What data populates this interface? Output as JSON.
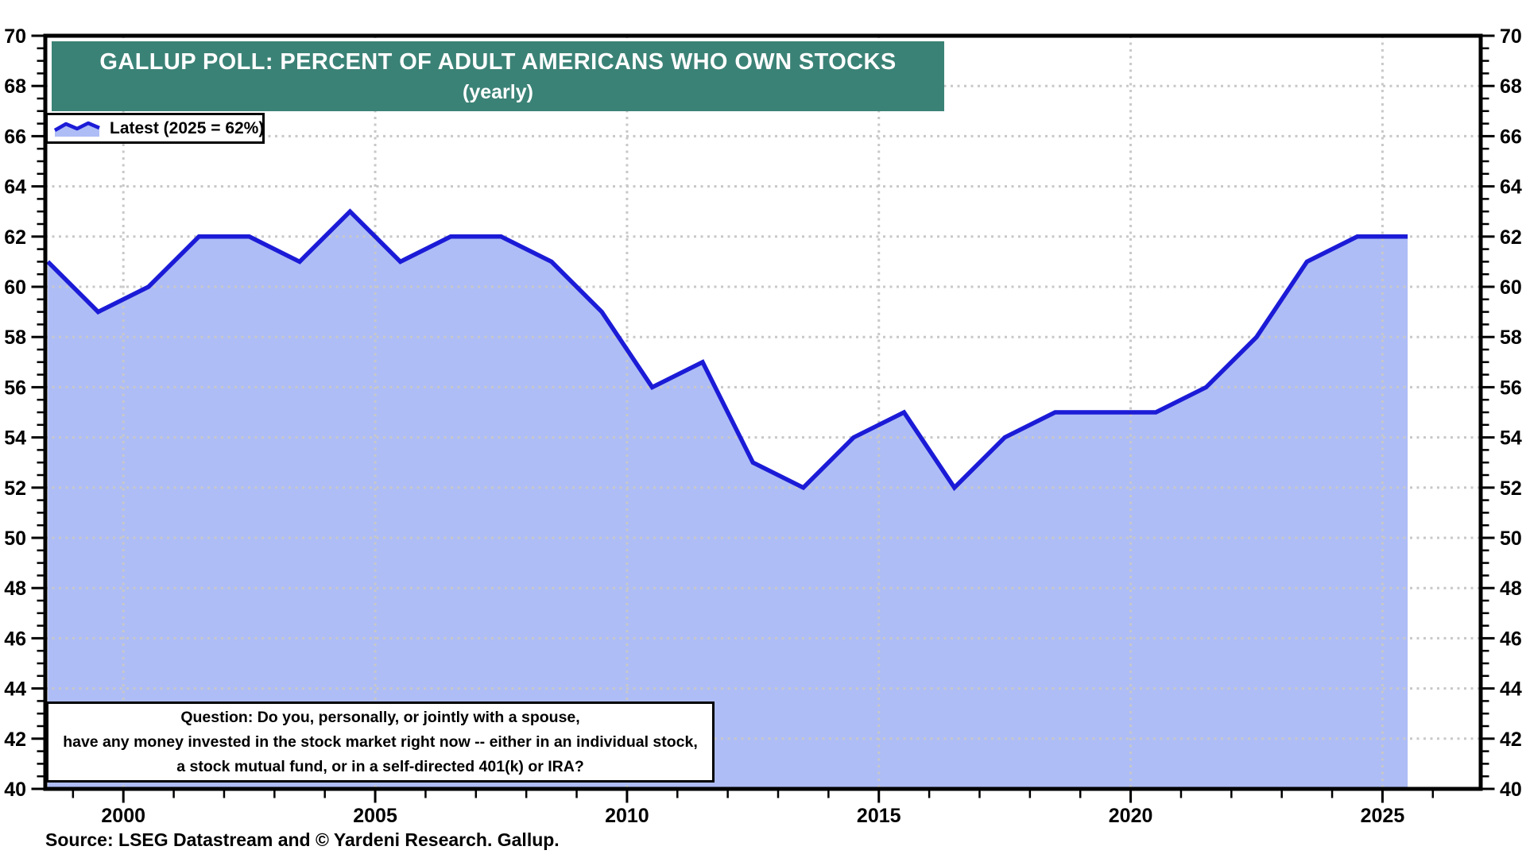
{
  "chart_data": {
    "type": "area",
    "title": "GALLUP POLL: PERCENT OF ADULT AMERICANS WHO OWN STOCKS",
    "subtitle": "(yearly)",
    "legend": [
      {
        "label": "Latest (2025 = 62%)"
      }
    ],
    "x": [
      1998,
      1999,
      2000,
      2001,
      2002,
      2003,
      2004,
      2005,
      2006,
      2007,
      2008,
      2009,
      2010,
      2011,
      2012,
      2013,
      2014,
      2015,
      2016,
      2017,
      2018,
      2019,
      2020,
      2021,
      2022,
      2023,
      2024,
      2025
    ],
    "series": [
      {
        "name": "Percent of adult Americans who own stocks",
        "values": [
          61,
          59,
          60,
          62,
          62,
          61,
          63,
          61,
          62,
          62,
          61,
          59,
          56,
          57,
          53,
          52,
          54,
          55,
          52,
          54,
          55,
          55,
          55,
          56,
          58,
          61,
          62,
          62
        ]
      }
    ],
    "ylim": [
      40,
      70
    ],
    "y_major_step": 2,
    "y_minor_step": 0.5,
    "x_major_ticks": [
      2000,
      2005,
      2010,
      2015,
      2020,
      2025
    ],
    "x_minor_step": 1,
    "grid": "dotted",
    "legend_position": "top-left",
    "y_axis_labels_both_sides": true,
    "question_lines": [
      "Question: Do you, personally, or jointly with a spouse,",
      "have any money invested in the stock market right now -- either in an individual stock,",
      "a stock mutual fund, or in a self-directed 401(k) or IRA?"
    ],
    "source": "Source: LSEG Datastream and © Yardeni Research. Gallup."
  },
  "colors": {
    "line_blue": "#1B1BD7",
    "fill_blue": "#AEBDF6",
    "banner_teal": "#3B8276",
    "grid_gray": "#C8C8C8",
    "axis_black": "#000000"
  }
}
